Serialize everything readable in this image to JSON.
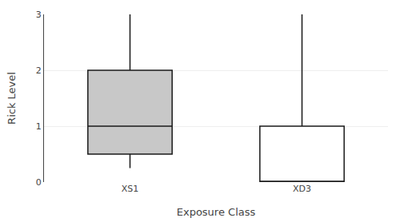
{
  "chart_data": {
    "type": "box",
    "categories": [
      "XS1",
      "XD3"
    ],
    "whisker_low": [
      0.25,
      0.0
    ],
    "q1": [
      0.5,
      0.0
    ],
    "median": [
      1.0,
      0.0
    ],
    "q3": [
      2.0,
      1.0
    ],
    "whisker_high": [
      3.0,
      3.0
    ],
    "colors": [
      "#c8c8c8",
      "#ffffff"
    ],
    "color": "#1a1a1a",
    "xlabel": "Exposure Class",
    "ylabel": "Rick Level",
    "ylim": [
      0,
      3
    ],
    "yticks": [
      0,
      1,
      2,
      3
    ],
    "grid": true
  }
}
